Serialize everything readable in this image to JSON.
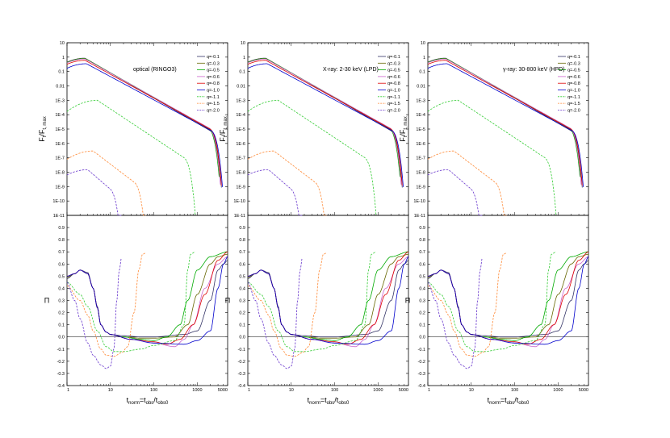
{
  "chart_data": {
    "type": "line",
    "panels": [
      {
        "title": "optical (RINGO3)"
      },
      {
        "title": "X-ray: 2-30 keV (LPD)"
      },
      {
        "title": "γ-ray: 30-800 keV (HPD)"
      }
    ],
    "x_axis": {
      "label_main": "t",
      "label_sub1": "norm",
      "label_mid": "=t",
      "label_sub2": "obs",
      "label_mid2": "/t",
      "label_sub3": "obs0",
      "scale": "log",
      "range": [
        1,
        5000
      ],
      "ticks": [
        "1",
        "10",
        "100",
        "1000",
        "5000"
      ]
    },
    "flux_axis": {
      "label_main": "F",
      "label_sub1": "t",
      "label_mid": "/F",
      "label_sub2": "t, max",
      "scale": "log",
      "range": [
        1e-11,
        10
      ],
      "ticks": [
        "1E-11",
        "1E-10",
        "1E-9",
        "1E-8",
        "1E-7",
        "1E-6",
        "1E-5",
        "1E-4",
        "1E-3",
        "0.01",
        "0.1",
        "1",
        "10"
      ]
    },
    "pol_axis": {
      "label": "Π",
      "range": [
        -0.4,
        1.0
      ],
      "ticks": [
        "-0.4",
        "-0.3",
        "-0.2",
        "-0.1",
        "0.0",
        "0.1",
        "0.2",
        "0.3",
        "0.4",
        "0.5",
        "0.6",
        "0.7",
        "0.8",
        "0.9"
      ]
    },
    "legend_position": "top-right",
    "series": [
      {
        "name": "q=-0.1",
        "color": "#333366",
        "dash": false,
        "peak": 0.85,
        "tpk": 2.6,
        "slope": 1.75,
        "tcut": 3600,
        "pol": [
          [
            1,
            0.48
          ],
          [
            1.5,
            0.52
          ],
          [
            2,
            0.55
          ],
          [
            3,
            0.53
          ],
          [
            4,
            0.4
          ],
          [
            5,
            0.25
          ],
          [
            6,
            0.1
          ],
          [
            8,
            0.04
          ],
          [
            10,
            0.02
          ],
          [
            20,
            0.01
          ],
          [
            50,
            0.0
          ],
          [
            100,
            0.0
          ],
          [
            500,
            0.02
          ],
          [
            1000,
            0.05
          ],
          [
            2000,
            0.3
          ],
          [
            3000,
            0.55
          ],
          [
            4000,
            0.6
          ],
          [
            5000,
            0.63
          ]
        ]
      },
      {
        "name": "q=-0.3",
        "color": "#666600",
        "dash": false,
        "peak": 0.82,
        "tpk": 2.6,
        "slope": 1.72,
        "tcut": 3500,
        "pol": [
          [
            1,
            0.49
          ],
          [
            1.5,
            0.52
          ],
          [
            2,
            0.55
          ],
          [
            3,
            0.52
          ],
          [
            4,
            0.4
          ],
          [
            5,
            0.24
          ],
          [
            6,
            0.1
          ],
          [
            8,
            0.04
          ],
          [
            10,
            0.02
          ],
          [
            20,
            0.0
          ],
          [
            50,
            -0.01
          ],
          [
            100,
            -0.01
          ],
          [
            300,
            0.0
          ],
          [
            600,
            0.1
          ],
          [
            1000,
            0.35
          ],
          [
            2000,
            0.6
          ],
          [
            3000,
            0.66
          ],
          [
            5000,
            0.68
          ]
        ]
      },
      {
        "name": "q=-0.5",
        "color": "#00aa00",
        "dash": false,
        "peak": 0.8,
        "tpk": 2.6,
        "slope": 1.7,
        "tcut": 3300,
        "pol": [
          [
            1,
            0.5
          ],
          [
            1.5,
            0.52
          ],
          [
            2,
            0.55
          ],
          [
            3,
            0.52
          ],
          [
            4,
            0.4
          ],
          [
            5,
            0.24
          ],
          [
            6,
            0.1
          ],
          [
            8,
            0.04
          ],
          [
            10,
            0.02
          ],
          [
            20,
            0.0
          ],
          [
            50,
            -0.02
          ],
          [
            100,
            -0.03
          ],
          [
            200,
            0.0
          ],
          [
            400,
            0.1
          ],
          [
            600,
            0.3
          ],
          [
            1000,
            0.55
          ],
          [
            2000,
            0.66
          ],
          [
            5000,
            0.7
          ]
        ]
      },
      {
        "name": "q=-0.6",
        "color": "#cc66cc",
        "dash": false,
        "peak": 0.75,
        "tpk": 2.6,
        "slope": 1.68,
        "tcut": 3400,
        "pol": [
          [
            1,
            0.5
          ],
          [
            1.5,
            0.52
          ],
          [
            2,
            0.55
          ],
          [
            3,
            0.52
          ],
          [
            4,
            0.4
          ],
          [
            5,
            0.24
          ],
          [
            6,
            0.1
          ],
          [
            8,
            0.04
          ],
          [
            10,
            0.02
          ],
          [
            30,
            -0.02
          ],
          [
            100,
            -0.05
          ],
          [
            300,
            -0.08
          ],
          [
            500,
            -0.02
          ],
          [
            800,
            0.1
          ],
          [
            1500,
            0.4
          ],
          [
            3000,
            0.6
          ],
          [
            5000,
            0.66
          ]
        ]
      },
      {
        "name": "q=-0.8",
        "color": "#dd0000",
        "dash": false,
        "peak": 0.6,
        "tpk": 2.6,
        "slope": 1.66,
        "tcut": 3600,
        "pol": [
          [
            1,
            0.5
          ],
          [
            1.5,
            0.52
          ],
          [
            2,
            0.55
          ],
          [
            3,
            0.52
          ],
          [
            4,
            0.4
          ],
          [
            5,
            0.24
          ],
          [
            6,
            0.1
          ],
          [
            8,
            0.04
          ],
          [
            10,
            0.02
          ],
          [
            30,
            -0.02
          ],
          [
            100,
            -0.04
          ],
          [
            200,
            -0.06
          ],
          [
            400,
            -0.02
          ],
          [
            800,
            0.1
          ],
          [
            1500,
            0.35
          ],
          [
            3000,
            0.63
          ],
          [
            5000,
            0.7
          ]
        ]
      },
      {
        "name": "q=-1.0",
        "color": "#0000cc",
        "dash": false,
        "peak": 0.35,
        "tpk": 2.8,
        "slope": 1.62,
        "tcut": 3800,
        "pol": [
          [
            1,
            0.5
          ],
          [
            1.5,
            0.52
          ],
          [
            2,
            0.55
          ],
          [
            3,
            0.52
          ],
          [
            4,
            0.4
          ],
          [
            5,
            0.24
          ],
          [
            6,
            0.1
          ],
          [
            8,
            0.04
          ],
          [
            10,
            0.02
          ],
          [
            30,
            -0.02
          ],
          [
            100,
            -0.05
          ],
          [
            500,
            -0.06
          ],
          [
            1000,
            -0.03
          ],
          [
            2000,
            0.05
          ],
          [
            3000,
            0.4
          ],
          [
            4000,
            0.6
          ],
          [
            5000,
            0.66
          ]
        ]
      },
      {
        "name": "q=-1.1",
        "color": "#33cc33",
        "dash": true,
        "peak": 0.001,
        "tpk": 5,
        "slope": 2.0,
        "tcut": 900,
        "pol": [
          [
            1,
            0.45
          ],
          [
            2,
            0.35
          ],
          [
            3,
            0.25
          ],
          [
            5,
            0.05
          ],
          [
            8,
            -0.08
          ],
          [
            12,
            -0.12
          ],
          [
            20,
            -0.12
          ],
          [
            50,
            -0.1
          ],
          [
            100,
            -0.07
          ],
          [
            300,
            -0.03
          ],
          [
            500,
            0.1
          ],
          [
            600,
            0.55
          ],
          [
            700,
            0.68
          ],
          [
            900,
            0.7
          ]
        ]
      },
      {
        "name": "q=-1.5",
        "color": "#ff8833",
        "dash": true,
        "peak": 3e-07,
        "tpk": 4,
        "slope": 2.3,
        "tcut": 65,
        "pol": [
          [
            1,
            0.42
          ],
          [
            2,
            0.3
          ],
          [
            3,
            0.18
          ],
          [
            4,
            0.05
          ],
          [
            6,
            -0.1
          ],
          [
            8,
            -0.15
          ],
          [
            12,
            -0.16
          ],
          [
            18,
            -0.13
          ],
          [
            25,
            -0.08
          ],
          [
            35,
            0.2
          ],
          [
            45,
            0.55
          ],
          [
            55,
            0.68
          ],
          [
            65,
            0.69
          ]
        ]
      },
      {
        "name": "q=-2.0",
        "color": "#6633cc",
        "dash": true,
        "peak": 1.5e-08,
        "tpk": 3,
        "slope": 2.6,
        "tcut": 18,
        "pol": [
          [
            1,
            0.45
          ],
          [
            1.5,
            0.3
          ],
          [
            2,
            0.15
          ],
          [
            3,
            -0.05
          ],
          [
            4,
            -0.15
          ],
          [
            6,
            -0.23
          ],
          [
            8,
            -0.26
          ],
          [
            10,
            -0.24
          ],
          [
            12,
            -0.1
          ],
          [
            14,
            0.3
          ],
          [
            16,
            0.55
          ],
          [
            18,
            0.65
          ]
        ]
      }
    ]
  }
}
